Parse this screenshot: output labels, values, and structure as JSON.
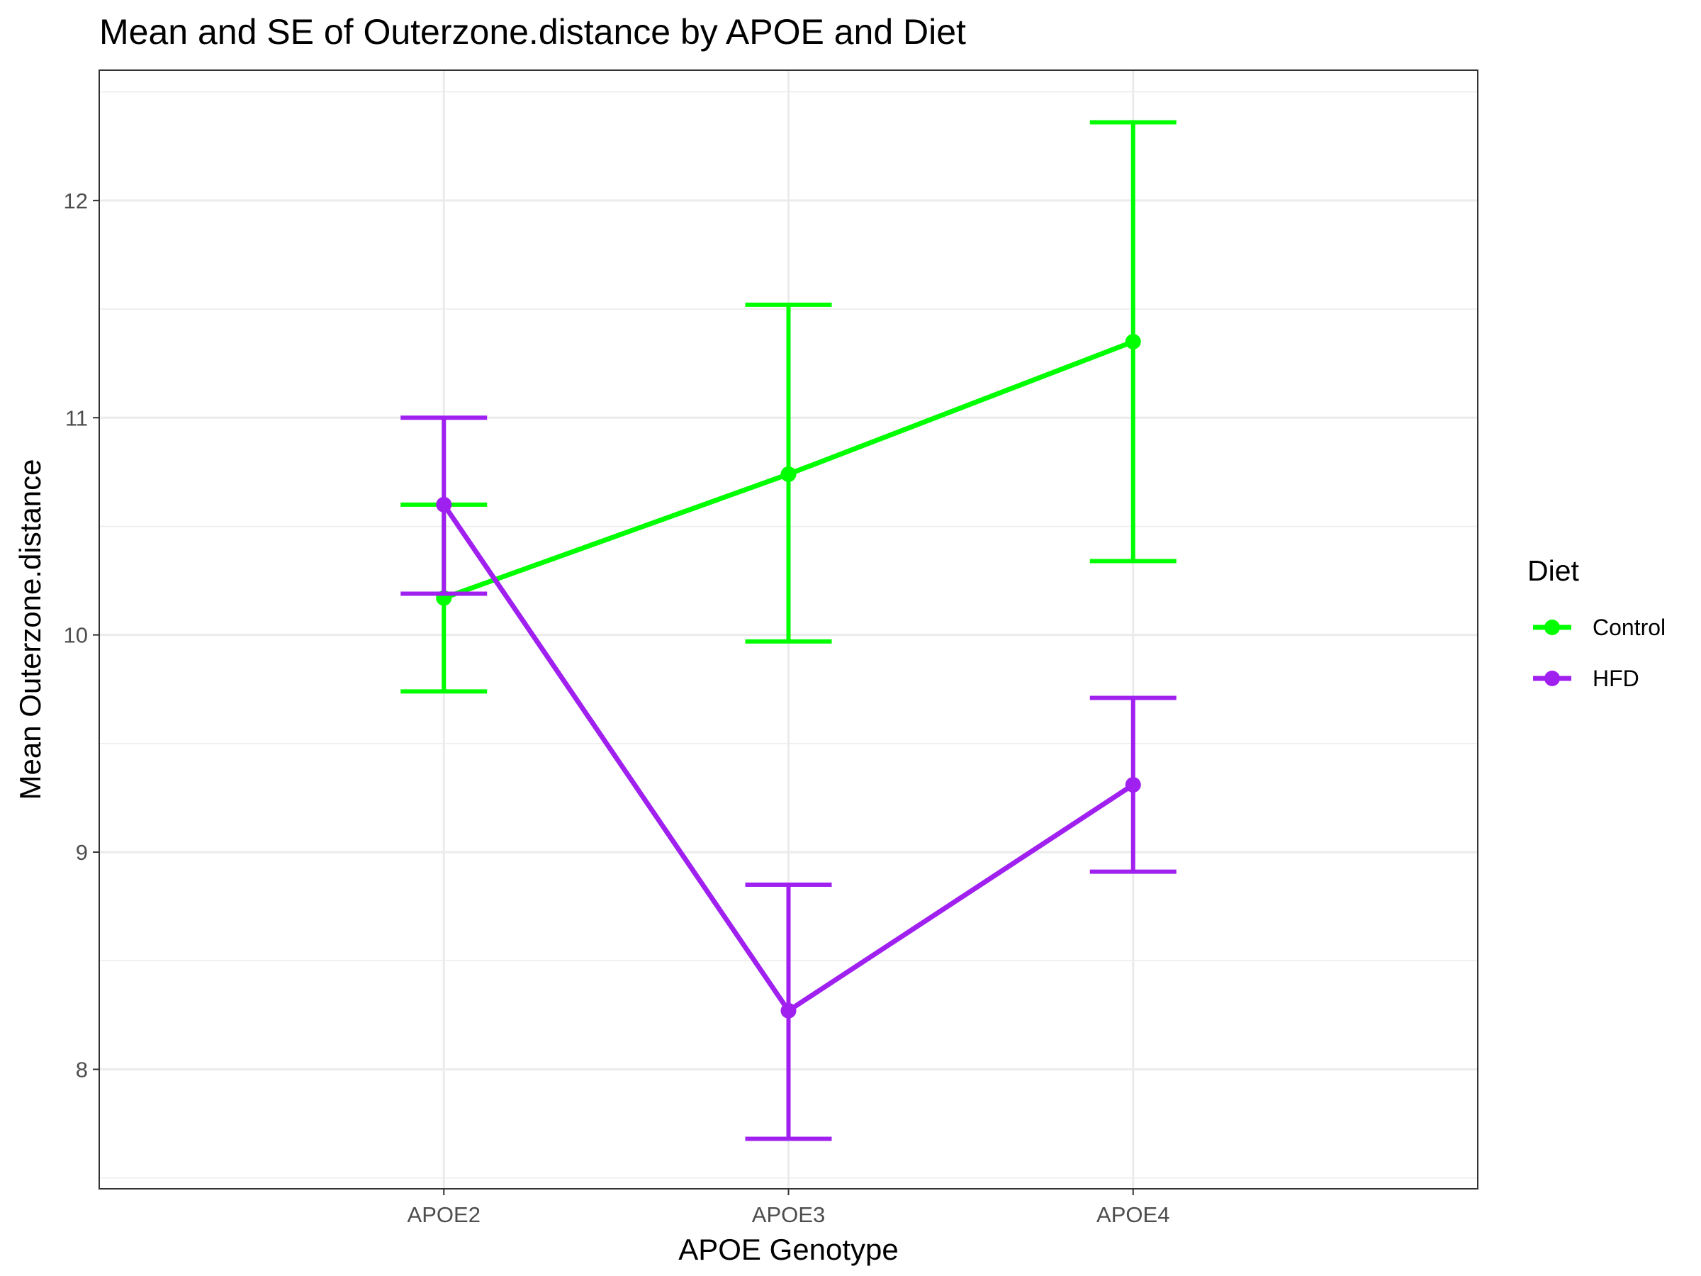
{
  "chart_data": {
    "type": "line",
    "title": "Mean and SE of Outerzone.distance by APOE and Diet",
    "xlabel": "APOE Genotype",
    "ylabel": "Mean Outerzone.distance",
    "categories": [
      "APOE2",
      "APOE3",
      "APOE4"
    ],
    "ylim": [
      7.45,
      12.6
    ],
    "yticks": [
      8,
      9,
      10,
      11,
      12
    ],
    "grid": true,
    "legend": {
      "title": "Diet",
      "position": "right"
    },
    "series": [
      {
        "name": "Control",
        "color": "#00ff00",
        "values": [
          10.17,
          10.74,
          11.35
        ],
        "error_low": [
          9.74,
          9.97,
          10.34
        ],
        "error_high": [
          10.6,
          11.52,
          12.36
        ]
      },
      {
        "name": "HFD",
        "color": "#a020f0",
        "values": [
          10.6,
          8.27,
          9.31
        ],
        "error_low": [
          10.19,
          7.68,
          8.91
        ],
        "error_high": [
          11.0,
          8.85,
          9.71
        ]
      }
    ]
  }
}
